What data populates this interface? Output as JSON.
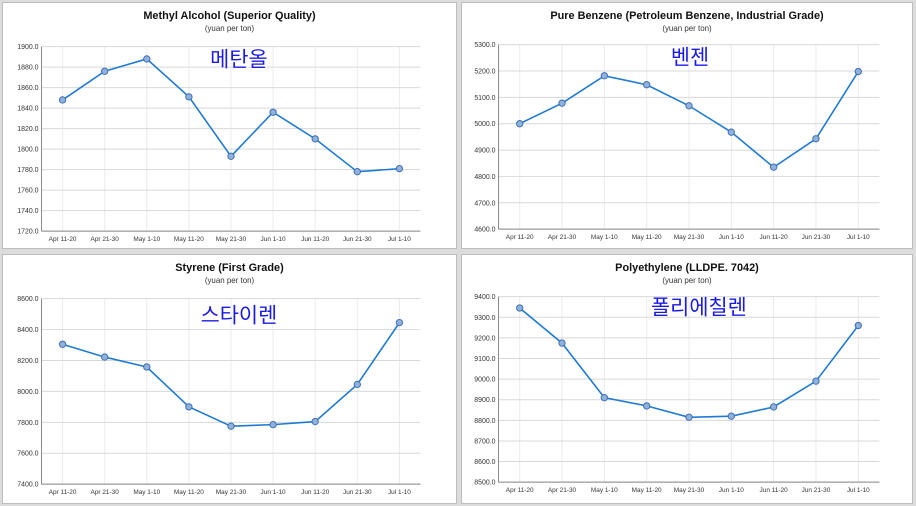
{
  "colors": {
    "line": "#1f7ad1",
    "point_fill": "#8fb1dd",
    "korean_label": "#1a1ae6"
  },
  "chart_data": [
    {
      "type": "line",
      "title": "Methyl Alcohol (Superior Quality)",
      "subtitle": "(yuan per ton)",
      "korean_label": "메탄올",
      "categories": [
        "Apr 11-20",
        "Apr 21-30",
        "May 1-10",
        "May 11-20",
        "May 21-30",
        "Jun 1-10",
        "Jun 11-20",
        "Jun 21-30",
        "Jul 1-10"
      ],
      "values": [
        1848,
        1876,
        1888,
        1851,
        1793,
        1836,
        1810,
        1778,
        1781
      ],
      "ylim": [
        1720,
        1900
      ],
      "yticks": [
        "1720.0",
        "1740.0",
        "1760.0",
        "1780.0",
        "1800.0",
        "1820.0",
        "1840.0",
        "1860.0",
        "1880.0",
        "1900.0"
      ],
      "grid": true
    },
    {
      "type": "line",
      "title": "Pure Benzene (Petroleum Benzene, Industrial Grade)",
      "subtitle": "(yuan per ton)",
      "korean_label": "벤젠",
      "categories": [
        "Apr 11-20",
        "Apr 21-30",
        "May 1-10",
        "May 11-20",
        "May 21-30",
        "Jun 1-10",
        "Jun 11-20",
        "Jun 21-30",
        "Jul 1-10"
      ],
      "values": [
        5000,
        5078,
        5182,
        5148,
        5068,
        4968,
        4835,
        4943,
        5198
      ],
      "ylim": [
        4600,
        5300
      ],
      "yticks": [
        "4600.0",
        "4700.0",
        "4800.0",
        "4900.0",
        "5000.0",
        "5100.0",
        "5200.0",
        "5300.0"
      ],
      "grid": true
    },
    {
      "type": "line",
      "title": "Styrene (First Grade)",
      "subtitle": "(yuan per ton)",
      "korean_label": "스타이렌",
      "categories": [
        "Apr 11-20",
        "Apr 21-30",
        "May 1-10",
        "May 11-20",
        "May 21-30",
        "Jun 1-10",
        "Jun 11-20",
        "Jun 21-30",
        "Jul 1-10"
      ],
      "values": [
        8305,
        8222,
        8158,
        7900,
        7775,
        7785,
        7805,
        8045,
        8445
      ],
      "ylim": [
        7400,
        8600
      ],
      "yticks": [
        "7400.0",
        "7600.0",
        "7800.0",
        "8000.0",
        "8200.0",
        "8400.0",
        "8600.0"
      ],
      "grid": true
    },
    {
      "type": "line",
      "title": "Polyethylene (LLDPE. 7042)",
      "subtitle": "(yuan per ton)",
      "korean_label": "폴리에칠렌",
      "categories": [
        "Apr 11-20",
        "Apr 21-30",
        "May 1-10",
        "May 11-20",
        "May 21-30",
        "Jun 1-10",
        "Jun 11-20",
        "Jun 21-30",
        "Jul 1-10"
      ],
      "values": [
        9345,
        9175,
        8910,
        8870,
        8815,
        8820,
        8865,
        8990,
        9260
      ],
      "ylim": [
        8500,
        9400
      ],
      "yticks": [
        "8500.0",
        "8600.0",
        "8700.0",
        "8800.0",
        "8900.0",
        "9000.0",
        "9100.0",
        "9200.0",
        "9300.0",
        "9400.0"
      ],
      "grid": true
    }
  ]
}
